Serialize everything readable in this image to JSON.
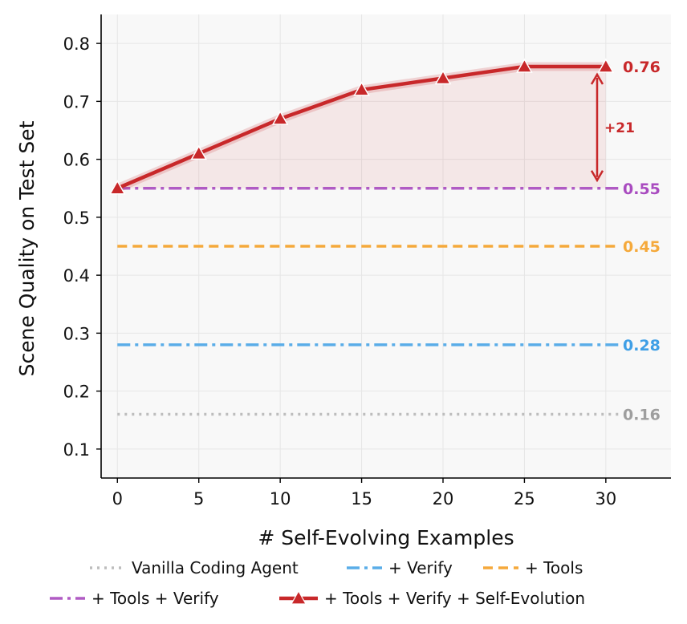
{
  "chart_data": {
    "type": "line",
    "xlabel": "# Self-Evolving Examples",
    "ylabel": "Scene Quality on Test Set",
    "xlim": [
      -1,
      34
    ],
    "ylim": [
      0.05,
      0.85
    ],
    "xticks": [
      "0",
      "5",
      "10",
      "15",
      "20",
      "25",
      "30"
    ],
    "yticks": [
      "0.1",
      "0.2",
      "0.3",
      "0.4",
      "0.5",
      "0.6",
      "0.7",
      "0.8"
    ],
    "grid": true,
    "legend_position": "bottom",
    "series": [
      {
        "name": "Vanilla Coding Agent",
        "kind": "hline",
        "y": 0.16,
        "label": "0.16",
        "color": "#bdbdbd",
        "dash": "dotted"
      },
      {
        "name": "+ Verify",
        "kind": "hline",
        "y": 0.28,
        "label": "0.28",
        "color": "#5aade8",
        "dash": "dashdot"
      },
      {
        "name": "+ Tools",
        "kind": "hline",
        "y": 0.45,
        "label": "0.45",
        "color": "#f5a93b",
        "dash": "dashed"
      },
      {
        "name": "+ Tools + Verify",
        "kind": "hline",
        "y": 0.55,
        "label": "0.55",
        "color": "#b05bc4",
        "dash": "dashdot"
      },
      {
        "name": "+ Tools + Verify + Self-Evolution",
        "kind": "line",
        "x": [
          0,
          5,
          10,
          15,
          20,
          25,
          30
        ],
        "y": [
          0.55,
          0.61,
          0.67,
          0.72,
          0.74,
          0.76,
          0.76
        ],
        "label": "0.76",
        "color": "#c8282a",
        "marker": "triangle"
      }
    ],
    "annotations": [
      {
        "text": "+21",
        "color": "#c8282a"
      }
    ],
    "label_colors": {
      "0.16": "#9e9e9e",
      "0.28": "#3f9fe6",
      "0.45": "#f5a93b",
      "0.55": "#a94cc0",
      "0.76": "#c8282a"
    }
  }
}
